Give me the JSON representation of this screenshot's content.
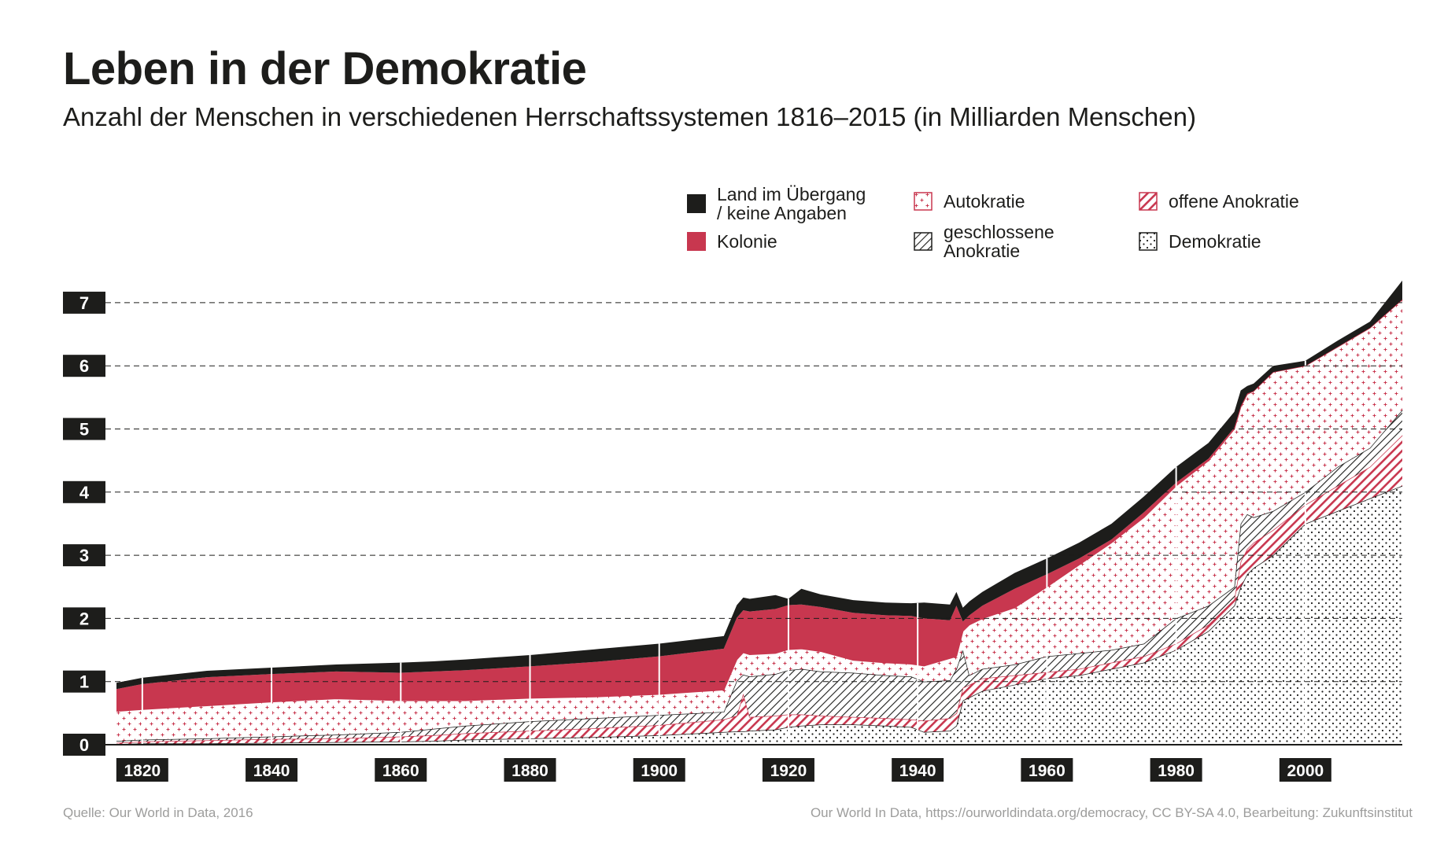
{
  "chart_data": {
    "type": "area",
    "title": "Leben in der Demokratie",
    "subtitle": "Anzahl der Menschen in verschiedenen Herrschaftssystemen 1816–2015 (in Milliarden Menschen)",
    "xlim": [
      1816,
      2015
    ],
    "ylim": [
      0,
      7.4
    ],
    "y_ticks": [
      0,
      1,
      2,
      3,
      4,
      5,
      6,
      7
    ],
    "x_ticks": [
      1820,
      1840,
      1860,
      1880,
      1900,
      1920,
      1940,
      1960,
      1980,
      2000
    ],
    "grid": "horizontal-dashed",
    "legend_position": "top-right",
    "x": [
      1816,
      1820,
      1830,
      1840,
      1850,
      1860,
      1865,
      1870,
      1880,
      1890,
      1900,
      1910,
      1912,
      1913,
      1914,
      1918,
      1920,
      1922,
      1925,
      1930,
      1935,
      1939,
      1941,
      1945,
      1946,
      1947,
      1948,
      1950,
      1955,
      1960,
      1965,
      1970,
      1975,
      1980,
      1985,
      1989,
      1990,
      1991,
      1992,
      1995,
      2000,
      2005,
      2010,
      2015
    ],
    "series": [
      {
        "name": "Demokratie",
        "pattern": "dots",
        "values": [
          0.01,
          0.02,
          0.02,
          0.03,
          0.04,
          0.05,
          0.06,
          0.08,
          0.1,
          0.12,
          0.15,
          0.2,
          0.21,
          0.21,
          0.22,
          0.24,
          0.28,
          0.3,
          0.32,
          0.32,
          0.3,
          0.28,
          0.2,
          0.22,
          0.3,
          0.7,
          0.75,
          0.85,
          0.95,
          1.05,
          1.1,
          1.2,
          1.3,
          1.5,
          1.8,
          2.2,
          2.5,
          2.7,
          2.8,
          3.0,
          3.5,
          3.7,
          3.9,
          4.1
        ]
      },
      {
        "name": "offene Anokratie",
        "pattern": "red-hatch",
        "values": [
          0.02,
          0.03,
          0.05,
          0.06,
          0.06,
          0.08,
          0.09,
          0.1,
          0.12,
          0.14,
          0.16,
          0.2,
          0.25,
          0.6,
          0.22,
          0.22,
          0.2,
          0.18,
          0.14,
          0.12,
          0.12,
          0.12,
          0.18,
          0.2,
          0.2,
          0.2,
          0.2,
          0.2,
          0.15,
          0.1,
          0.1,
          0.1,
          0.1,
          0.1,
          0.1,
          0.1,
          0.4,
          0.4,
          0.4,
          0.4,
          0.3,
          0.4,
          0.5,
          0.8
        ]
      },
      {
        "name": "geschlossene Anokratie",
        "pattern": "black-hatch",
        "values": [
          0.03,
          0.03,
          0.03,
          0.04,
          0.06,
          0.07,
          0.1,
          0.12,
          0.15,
          0.16,
          0.16,
          0.12,
          0.55,
          0.3,
          0.64,
          0.66,
          0.7,
          0.72,
          0.7,
          0.7,
          0.68,
          0.68,
          0.62,
          0.6,
          0.7,
          0.6,
          0.15,
          0.15,
          0.17,
          0.25,
          0.25,
          0.2,
          0.2,
          0.4,
          0.3,
          0.2,
          0.6,
          0.55,
          0.4,
          0.3,
          0.2,
          0.3,
          0.3,
          0.4
        ]
      },
      {
        "name": "Autokratie",
        "pattern": "red-cross",
        "values": [
          0.47,
          0.48,
          0.52,
          0.55,
          0.57,
          0.5,
          0.45,
          0.4,
          0.37,
          0.34,
          0.33,
          0.35,
          0.34,
          0.35,
          0.35,
          0.33,
          0.33,
          0.32,
          0.32,
          0.2,
          0.2,
          0.2,
          0.25,
          0.35,
          0.2,
          0.3,
          0.8,
          0.8,
          0.9,
          1.1,
          1.4,
          1.7,
          2.0,
          2.1,
          2.3,
          2.5,
          1.85,
          1.9,
          2.0,
          2.2,
          2.0,
          1.9,
          1.9,
          1.75
        ]
      },
      {
        "name": "Kolonie",
        "pattern": "solid-red",
        "values": [
          0.35,
          0.4,
          0.45,
          0.44,
          0.43,
          0.44,
          0.46,
          0.48,
          0.5,
          0.55,
          0.6,
          0.65,
          0.66,
          0.67,
          0.68,
          0.7,
          0.7,
          0.7,
          0.7,
          0.75,
          0.75,
          0.76,
          0.75,
          0.6,
          0.8,
          0.15,
          0.15,
          0.2,
          0.3,
          0.2,
          0.1,
          0.05,
          0.08,
          0.05,
          0.03,
          0.02,
          0.01,
          0.01,
          0.0,
          0.0,
          0.0,
          0.0,
          0.0,
          0.0
        ]
      },
      {
        "name": "Land im Übergang / keine Angaben",
        "pattern": "solid-black",
        "values": [
          0.1,
          0.1,
          0.1,
          0.1,
          0.11,
          0.16,
          0.16,
          0.17,
          0.18,
          0.2,
          0.2,
          0.2,
          0.2,
          0.2,
          0.2,
          0.22,
          0.1,
          0.25,
          0.2,
          0.2,
          0.2,
          0.2,
          0.25,
          0.25,
          0.22,
          0.22,
          0.22,
          0.22,
          0.25,
          0.25,
          0.25,
          0.25,
          0.25,
          0.25,
          0.25,
          0.25,
          0.25,
          0.12,
          0.12,
          0.1,
          0.08,
          0.1,
          0.1,
          0.3
        ]
      }
    ]
  },
  "legend": {
    "items": [
      {
        "label": "Land im Übergang\n/ keine Angaben",
        "pattern": "solid-black"
      },
      {
        "label": "Autokratie",
        "pattern": "red-cross"
      },
      {
        "label": "offene Anokratie",
        "pattern": "red-hatch"
      },
      {
        "label": "Kolonie",
        "pattern": "solid-red"
      },
      {
        "label": "geschlossene\nAnokratie",
        "pattern": "black-hatch"
      },
      {
        "label": "Demokratie",
        "pattern": "dots"
      }
    ]
  },
  "colors": {
    "red": "#c8374f",
    "black": "#1d1d1b",
    "grey": "#9d9d9c"
  },
  "footer": {
    "source_left": "Quelle: Our World in Data, 2016",
    "source_right": "Our World In Data, https://ourworldindata.org/democracy, CC BY-SA 4.0, Bearbeitung: Zukunftsinstitut"
  }
}
